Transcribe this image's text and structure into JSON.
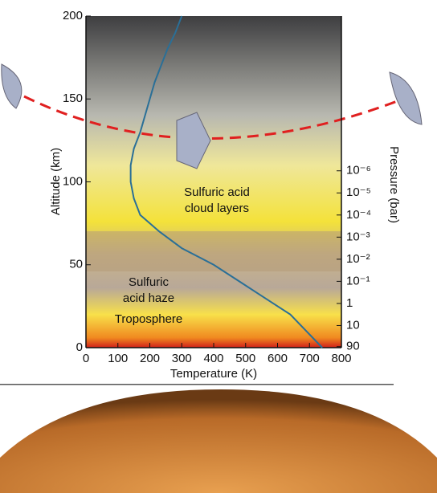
{
  "chart_data": {
    "type": "line",
    "x": [
      740,
      690,
      640,
      560,
      480,
      400,
      300,
      230,
      170,
      150,
      140,
      140,
      150,
      170,
      185,
      200,
      215,
      235,
      255,
      280,
      300
    ],
    "series": [
      {
        "color": "#2a6f97",
        "values": [
          0,
          10,
          20,
          30,
          40,
          50,
          60,
          70,
          80,
          90,
          100,
          110,
          120,
          130,
          140,
          150,
          160,
          170,
          180,
          190,
          200
        ]
      }
    ],
    "xlim": [
      0,
      800
    ],
    "xticks": [
      0,
      100,
      200,
      300,
      400,
      500,
      600,
      700,
      800
    ],
    "ylim": [
      0,
      200
    ],
    "yticks": [
      0,
      50,
      100,
      150,
      200
    ],
    "y2lim": [
      100,
      1e-13
    ],
    "y2log": true,
    "y2ticks": [
      {
        "value": 90,
        "label": "90"
      },
      10,
      1,
      {
        "value": 0.1,
        "label": "10⁻¹"
      },
      {
        "value": 0.01,
        "label": "10⁻²"
      },
      {
        "value": 0.001,
        "label": "10⁻³"
      },
      {
        "value": 0.0001,
        "label": "10⁻⁴"
      },
      {
        "value": 1e-05,
        "label": "10⁻⁵"
      },
      {
        "value": 1e-06,
        "label": "10⁻⁶"
      }
    ],
    "xlabel": "Temperature (K)",
    "ylabel": "Altitude (km)",
    "y2label": "Pressure (bar)",
    "annotations": [
      "Sulfuric acid",
      "cloud layers",
      "Sulfuric",
      "acid haze",
      "Troposphere"
    ]
  }
}
